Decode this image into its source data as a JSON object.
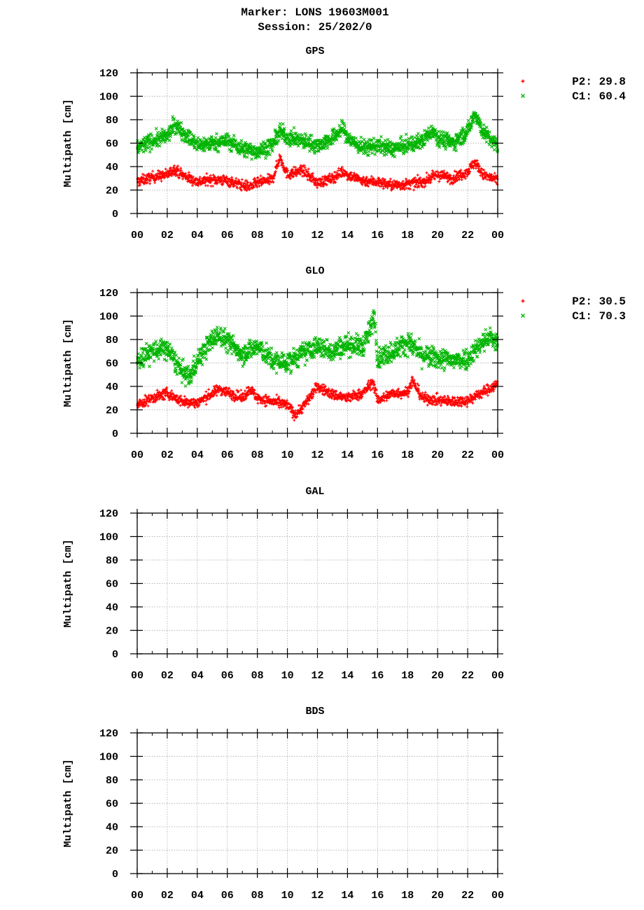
{
  "figure": {
    "title_line1": "Marker: LONS 19603M001",
    "title_line2": "Session: 25/202/0"
  },
  "colors": {
    "p2": "#ff0000",
    "c1": "#00b400",
    "grid": "#a0a0a0",
    "axis": "#000000"
  },
  "chart_data": [
    {
      "type": "scatter",
      "title": "GPS",
      "ylabel": "Multipath [cm]",
      "xlabel": "",
      "ylim": [
        0,
        120
      ],
      "yticks": [
        "0",
        "20",
        "40",
        "60",
        "80",
        "100",
        "120"
      ],
      "xticks": [
        "00",
        "02",
        "04",
        "06",
        "08",
        "10",
        "12",
        "14",
        "16",
        "18",
        "20",
        "22",
        "00"
      ],
      "xrange_hours": [
        0,
        24
      ],
      "legend_position": "right",
      "series": [
        {
          "name": "P2",
          "mean": "29.8",
          "legend_label": "P2: 29.8",
          "marker": "+",
          "color": "#ff0000",
          "profile_hours": [
            0,
            1,
            2,
            2.5,
            3,
            4,
            5,
            6,
            7,
            7.5,
            8,
            9,
            9.5,
            10,
            11,
            12,
            13,
            13.7,
            14,
            15,
            16,
            17,
            18,
            19,
            20,
            21,
            22,
            22.5,
            23,
            24
          ],
          "profile_values": [
            27,
            31,
            33,
            38,
            33,
            27,
            29,
            28,
            24,
            23,
            26,
            29,
            48,
            33,
            37,
            26,
            30,
            36,
            33,
            28,
            27,
            24,
            25,
            27,
            33,
            30,
            36,
            44,
            33,
            28
          ],
          "spread": 4
        },
        {
          "name": "C1",
          "mean": "60.4",
          "legend_label": "C1: 60.4",
          "marker": "x",
          "color": "#00b400",
          "profile_hours": [
            0,
            1,
            2,
            2.5,
            3,
            4,
            5,
            6,
            7,
            8,
            9,
            9.5,
            10,
            11,
            12,
            13,
            13.7,
            14,
            15,
            16,
            17,
            18,
            19,
            19.7,
            20,
            21,
            22,
            22.5,
            23,
            24
          ],
          "profile_values": [
            56,
            62,
            66,
            76,
            70,
            58,
            60,
            62,
            55,
            53,
            58,
            70,
            65,
            62,
            58,
            64,
            73,
            64,
            56,
            58,
            55,
            58,
            62,
            72,
            65,
            60,
            70,
            86,
            70,
            57
          ],
          "spread": 6
        }
      ]
    },
    {
      "type": "scatter",
      "title": "GLO",
      "ylabel": "Multipath [cm]",
      "xlabel": "",
      "ylim": [
        0,
        120
      ],
      "yticks": [
        "0",
        "20",
        "40",
        "60",
        "80",
        "100",
        "120"
      ],
      "xticks": [
        "00",
        "02",
        "04",
        "06",
        "08",
        "10",
        "12",
        "14",
        "16",
        "18",
        "20",
        "22",
        "00"
      ],
      "xrange_hours": [
        0,
        24
      ],
      "legend_position": "right",
      "series": [
        {
          "name": "P2",
          "mean": "30.5",
          "legend_label": "P2: 30.5",
          "marker": "+",
          "color": "#ff0000",
          "profile_hours": [
            0,
            1,
            2,
            3,
            4,
            5,
            5.5,
            6,
            7,
            7.5,
            8,
            9,
            10,
            10.5,
            11,
            12,
            13,
            14,
            15,
            15.7,
            16,
            17,
            18,
            18.3,
            19,
            20,
            21,
            22,
            23,
            24
          ],
          "profile_values": [
            24,
            30,
            34,
            27,
            26,
            34,
            38,
            35,
            30,
            38,
            30,
            27,
            24,
            16,
            22,
            40,
            33,
            30,
            34,
            44,
            28,
            34,
            35,
            45,
            30,
            28,
            27,
            28,
            35,
            42
          ],
          "spread": 4
        },
        {
          "name": "C1",
          "mean": "70.3",
          "legend_label": "C1: 70.3",
          "marker": "x",
          "color": "#00b400",
          "profile_hours": [
            0,
            1,
            2,
            3,
            3.5,
            4,
            5,
            5.5,
            6,
            7,
            8,
            9,
            10,
            11,
            12,
            13,
            14,
            15,
            15.5,
            15.8,
            16,
            17,
            18,
            19,
            20,
            21,
            22,
            23,
            23.5,
            24
          ],
          "profile_values": [
            62,
            70,
            72,
            52,
            48,
            62,
            80,
            84,
            78,
            68,
            74,
            62,
            60,
            68,
            74,
            70,
            76,
            74,
            88,
            100,
            64,
            70,
            78,
            66,
            64,
            62,
            64,
            78,
            82,
            76
          ],
          "spread": 8
        }
      ]
    },
    {
      "type": "scatter",
      "title": "GAL",
      "ylabel": "Multipath [cm]",
      "xlabel": "",
      "ylim": [
        0,
        120
      ],
      "yticks": [
        "0",
        "20",
        "40",
        "60",
        "80",
        "100",
        "120"
      ],
      "xticks": [
        "00",
        "02",
        "04",
        "06",
        "08",
        "10",
        "12",
        "14",
        "16",
        "18",
        "20",
        "22",
        "00"
      ],
      "xrange_hours": [
        0,
        24
      ],
      "series": []
    },
    {
      "type": "scatter",
      "title": "BDS",
      "ylabel": "Multipath [cm]",
      "xlabel": "",
      "ylim": [
        0,
        120
      ],
      "yticks": [
        "0",
        "20",
        "40",
        "60",
        "80",
        "100",
        "120"
      ],
      "xticks": [
        "00",
        "02",
        "04",
        "06",
        "08",
        "10",
        "12",
        "14",
        "16",
        "18",
        "20",
        "22",
        "00"
      ],
      "xrange_hours": [
        0,
        24
      ],
      "series": []
    }
  ]
}
